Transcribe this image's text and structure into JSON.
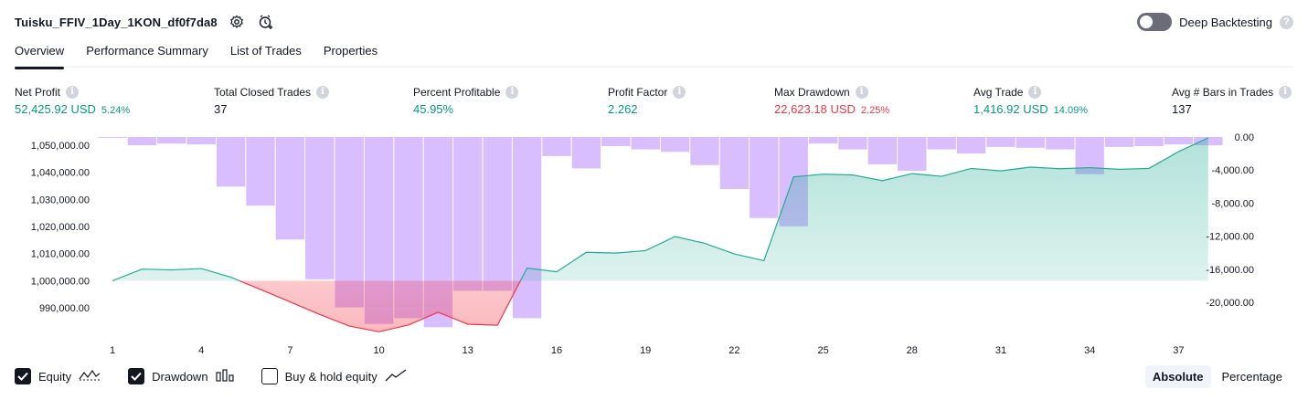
{
  "header": {
    "strategy_name": "Tuisku_FFIV_1Day_1KON_df0f7da8",
    "deep_backtesting_label": "Deep Backtesting",
    "deep_backtesting_enabled": false
  },
  "tabs": [
    {
      "label": "Overview",
      "active": true
    },
    {
      "label": "Performance Summary",
      "active": false
    },
    {
      "label": "List of Trades",
      "active": false
    },
    {
      "label": "Properties",
      "active": false
    }
  ],
  "metrics": {
    "net_profit": {
      "label": "Net Profit",
      "value": "52,425.92 USD",
      "sub": "5.24%"
    },
    "total_closed_trades": {
      "label": "Total Closed Trades",
      "value": "37"
    },
    "percent_profitable": {
      "label": "Percent Profitable",
      "value": "45.95%"
    },
    "profit_factor": {
      "label": "Profit Factor",
      "value": "2.262"
    },
    "max_drawdown": {
      "label": "Max Drawdown",
      "value": "22,623.18 USD",
      "sub": "2.25%"
    },
    "avg_trade": {
      "label": "Avg Trade",
      "value": "1,416.92 USD",
      "sub": "14.09%"
    },
    "avg_bars": {
      "label": "Avg # Bars in Trades",
      "value": "137"
    }
  },
  "legend": {
    "equity": {
      "label": "Equity",
      "checked": true
    },
    "drawdown": {
      "label": "Drawdown",
      "checked": true
    },
    "buy_hold": {
      "label": "Buy & hold equity",
      "checked": false
    }
  },
  "mode": {
    "absolute": "Absolute",
    "percentage": "Percentage",
    "selected": "Absolute"
  },
  "colors": {
    "profit": "#089981",
    "loss": "#f23645",
    "drawdown_bar": "#d1b3ff",
    "equity_line": "#22ab94"
  },
  "chart_data": {
    "type": "line",
    "x_ticks": [
      "1",
      "4",
      "7",
      "10",
      "13",
      "16",
      "19",
      "22",
      "25",
      "28",
      "31",
      "34",
      "37"
    ],
    "x_range": [
      1,
      38
    ],
    "left_axis": {
      "ticks": [
        "1,050,000.00",
        "1,040,000.00",
        "1,030,000.00",
        "1,020,000.00",
        "1,010,000.00",
        "1,000,000.00",
        "990,000.00"
      ],
      "range": [
        985000,
        1053000
      ]
    },
    "right_axis": {
      "ticks": [
        "0.00",
        "-4,000.00",
        "-8,000.00",
        "-12,000.00",
        "-16,000.00",
        "-20,000.00"
      ],
      "range": [
        -22300,
        0
      ]
    },
    "series": [
      {
        "name": "Equity",
        "axis": "left",
        "type": "area",
        "baseline": 1000000,
        "x": [
          1,
          2,
          3,
          4,
          5,
          6,
          7,
          8,
          9,
          10,
          11,
          12,
          13,
          14,
          15,
          16,
          17,
          18,
          19,
          20,
          21,
          22,
          23,
          24,
          25,
          26,
          27,
          28,
          29,
          30,
          31,
          32,
          33,
          34,
          35,
          36,
          37,
          38
        ],
        "values": [
          1000000,
          1004300,
          1004000,
          1004500,
          1001300,
          996800,
          992200,
          987600,
          983300,
          981200,
          983700,
          988400,
          984000,
          983600,
          1004700,
          1003300,
          1010500,
          1010200,
          1011100,
          1016300,
          1013800,
          1009900,
          1007400,
          1038300,
          1039300,
          1039000,
          1036900,
          1039500,
          1038500,
          1041400,
          1040500,
          1041900,
          1041300,
          1041700,
          1041100,
          1041400,
          1047600,
          1052700
        ]
      },
      {
        "name": "Drawdown",
        "axis": "right",
        "type": "bar",
        "x": [
          1,
          2,
          3,
          4,
          5,
          6,
          7,
          8,
          9,
          10,
          11,
          12,
          13,
          14,
          15,
          16,
          17,
          18,
          19,
          20,
          21,
          22,
          23,
          24,
          25,
          26,
          27,
          28,
          29,
          30,
          31,
          32,
          33,
          34,
          35,
          36,
          37,
          38
        ],
        "values": [
          -50,
          -1000,
          -800,
          -900,
          -6000,
          -8300,
          -12400,
          -17200,
          -20600,
          -22600,
          -21900,
          -23000,
          -18600,
          -18600,
          -21900,
          -2300,
          -3800,
          -1100,
          -1500,
          -1800,
          -3400,
          -6300,
          -9800,
          -10800,
          -800,
          -1500,
          -3300,
          -4100,
          -1500,
          -2000,
          -1200,
          -1300,
          -1500,
          -4500,
          -1200,
          -1100,
          -900,
          -1000
        ]
      }
    ]
  }
}
